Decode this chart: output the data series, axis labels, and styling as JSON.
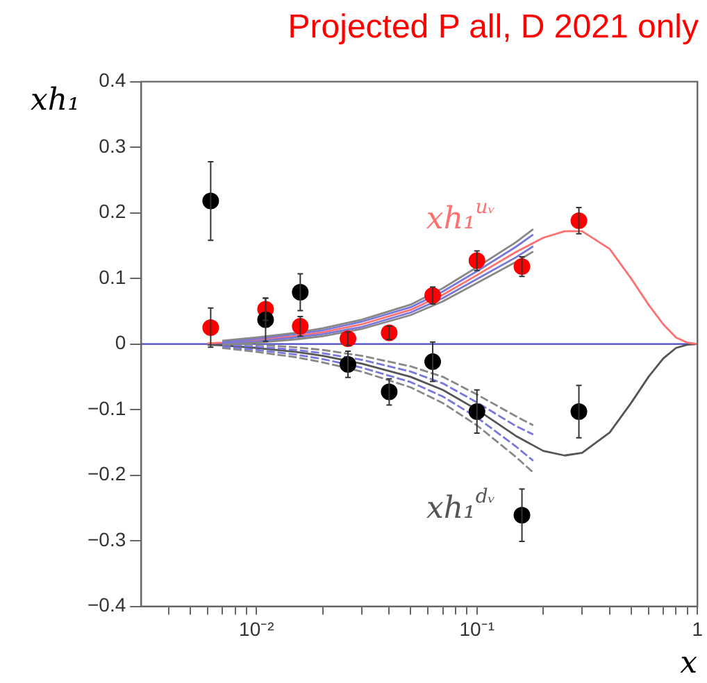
{
  "chart_data": {
    "type": "scatter",
    "title": "Projected P all, D 2021 only",
    "xlabel": "x",
    "ylabel": "xh₁",
    "log": "x",
    "grid": false,
    "xlim": [
      0.003,
      1
    ],
    "ylim": [
      -0.4,
      0.4
    ],
    "xticks": [
      {
        "value": 0.004,
        "label": null
      },
      {
        "value": 0.005,
        "label": null
      },
      {
        "value": 0.006,
        "label": null
      },
      {
        "value": 0.007,
        "label": null
      },
      {
        "value": 0.008,
        "label": null
      },
      {
        "value": 0.009,
        "label": null
      },
      {
        "value": 0.01,
        "label": "10⁻²"
      },
      {
        "value": 0.02,
        "label": null
      },
      {
        "value": 0.03,
        "label": null
      },
      {
        "value": 0.04,
        "label": null
      },
      {
        "value": 0.05,
        "label": null
      },
      {
        "value": 0.06,
        "label": null
      },
      {
        "value": 0.07,
        "label": null
      },
      {
        "value": 0.08,
        "label": null
      },
      {
        "value": 0.09,
        "label": null
      },
      {
        "value": 0.1,
        "label": "10⁻¹"
      },
      {
        "value": 0.2,
        "label": null
      },
      {
        "value": 0.3,
        "label": null
      },
      {
        "value": 0.4,
        "label": null
      },
      {
        "value": 0.5,
        "label": null
      },
      {
        "value": 0.6,
        "label": null
      },
      {
        "value": 0.7,
        "label": null
      },
      {
        "value": 0.8,
        "label": null
      },
      {
        "value": 0.9,
        "label": null
      },
      {
        "value": 1,
        "label": "1"
      }
    ],
    "yticks": [
      {
        "value": -0.4,
        "label": "−0.4"
      },
      {
        "value": -0.3,
        "label": "−0.3"
      },
      {
        "value": -0.2,
        "label": "−0.2"
      },
      {
        "value": -0.1,
        "label": "−0.1"
      },
      0,
      0.1,
      0.2,
      0.3,
      0.4
    ],
    "ref_lines": [
      {
        "axis": "y",
        "value": 0,
        "color": "#4a4ac8"
      }
    ],
    "series": [
      {
        "type": "line",
        "color": "#888888",
        "x": [
          0.007,
          0.01,
          0.015,
          0.02,
          0.03,
          0.05,
          0.07,
          0.1,
          0.15,
          0.18
        ],
        "values": [
          0.005,
          0.01,
          0.017,
          0.024,
          0.037,
          0.06,
          0.085,
          0.117,
          0.155,
          0.175
        ]
      },
      {
        "type": "line",
        "color": "#888888",
        "x": [
          0.007,
          0.01,
          0.015,
          0.02,
          0.03,
          0.05,
          0.07,
          0.1,
          0.15,
          0.18
        ],
        "values": [
          -0.001,
          0.002,
          0.007,
          0.012,
          0.023,
          0.044,
          0.065,
          0.093,
          0.125,
          0.141
        ]
      },
      {
        "type": "line",
        "color": "#7777dd",
        "x": [
          0.007,
          0.01,
          0.015,
          0.02,
          0.03,
          0.05,
          0.07,
          0.1,
          0.15,
          0.18
        ],
        "values": [
          0.003,
          0.008,
          0.015,
          0.021,
          0.034,
          0.056,
          0.08,
          0.111,
          0.148,
          0.167
        ]
      },
      {
        "type": "line",
        "color": "#7777dd",
        "x": [
          0.007,
          0.01,
          0.015,
          0.02,
          0.03,
          0.05,
          0.07,
          0.1,
          0.15,
          0.18
        ],
        "values": [
          0.001,
          0.004,
          0.01,
          0.015,
          0.026,
          0.048,
          0.07,
          0.099,
          0.132,
          0.149
        ]
      },
      {
        "type": "line",
        "color": "#888888",
        "line_style": "dashed",
        "x": [
          0.007,
          0.01,
          0.015,
          0.02,
          0.03,
          0.05,
          0.07,
          0.1,
          0.15,
          0.18
        ],
        "values": [
          0.001,
          -0.001,
          -0.005,
          -0.009,
          -0.018,
          -0.034,
          -0.05,
          -0.077,
          -0.11,
          -0.124
        ]
      },
      {
        "type": "line",
        "color": "#888888",
        "line_style": "dashed",
        "x": [
          0.007,
          0.01,
          0.015,
          0.02,
          0.03,
          0.05,
          0.07,
          0.1,
          0.15,
          0.18
        ],
        "values": [
          -0.006,
          -0.012,
          -0.02,
          -0.028,
          -0.042,
          -0.066,
          -0.09,
          -0.124,
          -0.172,
          -0.196
        ]
      },
      {
        "type": "line",
        "color": "#7777dd",
        "line_style": "dashed",
        "x": [
          0.007,
          0.01,
          0.015,
          0.02,
          0.03,
          0.05,
          0.07,
          0.1,
          0.15,
          0.18
        ],
        "values": [
          -0.001,
          -0.004,
          -0.009,
          -0.014,
          -0.024,
          -0.042,
          -0.06,
          -0.089,
          -0.125,
          -0.138
        ]
      },
      {
        "type": "line",
        "color": "#7777dd",
        "line_style": "dashed",
        "x": [
          0.007,
          0.01,
          0.015,
          0.02,
          0.03,
          0.05,
          0.07,
          0.1,
          0.15,
          0.18
        ],
        "values": [
          -0.004,
          -0.009,
          -0.016,
          -0.023,
          -0.036,
          -0.058,
          -0.08,
          -0.112,
          -0.156,
          -0.178
        ]
      },
      {
        "type": "line",
        "name": "xh₁$^{uᵥ}$",
        "color": "#ff7070",
        "x": [
          0.006,
          0.007,
          0.01,
          0.015,
          0.02,
          0.03,
          0.05,
          0.07,
          0.1,
          0.15,
          0.2,
          0.25,
          0.3,
          0.4,
          0.5,
          0.6,
          0.7,
          0.8,
          0.9,
          1
        ],
        "values": [
          0.001,
          0.002,
          0.006,
          0.012,
          0.018,
          0.03,
          0.052,
          0.075,
          0.105,
          0.14,
          0.162,
          0.172,
          0.172,
          0.145,
          0.1,
          0.06,
          0.03,
          0.01,
          0.002,
          0
        ]
      },
      {
        "type": "line",
        "name": "xh₁$^{dᵥ}$",
        "color": "#555555",
        "x": [
          0.006,
          0.007,
          0.01,
          0.015,
          0.02,
          0.03,
          0.05,
          0.07,
          0.1,
          0.15,
          0.2,
          0.25,
          0.3,
          0.4,
          0.5,
          0.6,
          0.7,
          0.8,
          0.9,
          1
        ],
        "values": [
          -0.001,
          -0.002,
          -0.006,
          -0.012,
          -0.018,
          -0.03,
          -0.05,
          -0.07,
          -0.1,
          -0.14,
          -0.163,
          -0.17,
          -0.166,
          -0.135,
          -0.09,
          -0.05,
          -0.022,
          -0.006,
          -0.001,
          0
        ]
      },
      {
        "marker": "circle",
        "color": "#000000",
        "x": [
          0.0062,
          0.011,
          0.0158,
          0.026,
          0.04,
          0.063,
          0.1,
          0.16,
          0.29
        ],
        "values": [
          0.218,
          0.037,
          0.079,
          -0.031,
          -0.073,
          -0.027,
          -0.103,
          -0.261,
          -0.103
        ],
        "errors": [
          0.06,
          0.033,
          0.028,
          0.02,
          0.02,
          0.03,
          0.033,
          0.04,
          0.04
        ]
      },
      {
        "marker": "circle",
        "color": "#ff0000",
        "x": [
          0.0062,
          0.011,
          0.0158,
          0.026,
          0.04,
          0.063,
          0.1,
          0.16,
          0.29
        ],
        "values": [
          0.025,
          0.053,
          0.027,
          0.008,
          0.017,
          0.074,
          0.127,
          0.118,
          0.188
        ],
        "errors": [
          0.03,
          0.017,
          0.015,
          0.01,
          0.01,
          0.013,
          0.015,
          0.015,
          0.02
        ]
      }
    ]
  }
}
